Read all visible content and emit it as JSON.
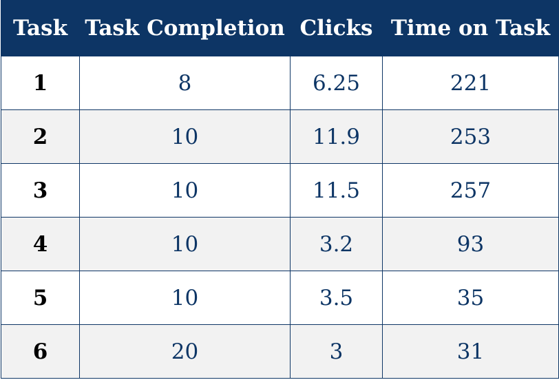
{
  "colors": {
    "header_bg": "#0d3565",
    "header_text": "#ffffff",
    "cell_text": "#0d3565",
    "row_alt_bg": "#f2f2f2",
    "border": "#0d3565"
  },
  "table": {
    "headers": [
      "Task",
      "Task Completion",
      "Clicks",
      "Time on Task"
    ],
    "rows": [
      [
        "1",
        "8",
        "6.25",
        "221"
      ],
      [
        "2",
        "10",
        "11.9",
        "253"
      ],
      [
        "3",
        "10",
        "11.5",
        "257"
      ],
      [
        "4",
        "10",
        "3.2",
        "93"
      ],
      [
        "5",
        "10",
        "3.5",
        "35"
      ],
      [
        "6",
        "20",
        "3",
        "31"
      ]
    ]
  }
}
